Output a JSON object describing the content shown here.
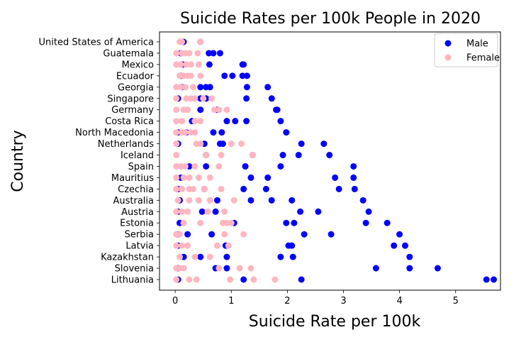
{
  "chart_data": {
    "type": "scatter",
    "title": "Suicide Rates per 100k People in 2020",
    "xlabel": "Suicide Rate per 100k",
    "ylabel": "Country",
    "xlim": [
      -0.28,
      5.8
    ],
    "xticks": [
      "0",
      "1",
      "2",
      "3",
      "4",
      "5"
    ],
    "xtick_values": [
      0,
      1,
      2,
      3,
      4,
      5
    ],
    "grid": false,
    "legend": "top-right",
    "categories": [
      "United States of America",
      "Guatemala",
      "Mexico",
      "Ecuador",
      "Georgia",
      "Singapore",
      "Germany",
      "Costa Rica",
      "North Macedonia",
      "Netherlands",
      "Iceland",
      "Spain",
      "Mauritius",
      "Czechia",
      "Australia",
      "Austria",
      "Estonia",
      "Serbia",
      "Latvia",
      "Kazakhstan",
      "Slovenia",
      "Lithuania"
    ],
    "series": [
      {
        "name": "Male",
        "color": "#0000ff",
        "points": [
          [
            "United States of America",
            0.15
          ],
          [
            "United States of America",
            0.45
          ],
          [
            "Guatemala",
            0.1
          ],
          [
            "Guatemala",
            0.6
          ],
          [
            "Guatemala",
            0.68
          ],
          [
            "Guatemala",
            0.8
          ],
          [
            "Mexico",
            0.13
          ],
          [
            "Mexico",
            0.61
          ],
          [
            "Mexico",
            1.2
          ],
          [
            "Mexico",
            1.22
          ],
          [
            "Ecuador",
            0.1
          ],
          [
            "Ecuador",
            0.88
          ],
          [
            "Ecuador",
            1.02
          ],
          [
            "Ecuador",
            1.2
          ],
          [
            "Ecuador",
            1.28
          ],
          [
            "Georgia",
            0.12
          ],
          [
            "Georgia",
            0.45
          ],
          [
            "Georgia",
            0.55
          ],
          [
            "Georgia",
            0.62
          ],
          [
            "Georgia",
            1.28
          ],
          [
            "Georgia",
            1.65
          ],
          [
            "Singapore",
            0.05
          ],
          [
            "Singapore",
            0.45
          ],
          [
            "Singapore",
            0.55
          ],
          [
            "Singapore",
            1.27
          ],
          [
            "Singapore",
            1.72
          ],
          [
            "Germany",
            0.45
          ],
          [
            "Germany",
            0.75
          ],
          [
            "Germany",
            1.8
          ],
          [
            "Germany",
            1.82
          ],
          [
            "Costa Rica",
            0.3
          ],
          [
            "Costa Rica",
            0.92
          ],
          [
            "Costa Rica",
            1.07
          ],
          [
            "Costa Rica",
            1.27
          ],
          [
            "Costa Rica",
            1.88
          ],
          [
            "North Macedonia",
            0.05
          ],
          [
            "North Macedonia",
            0.2
          ],
          [
            "North Macedonia",
            0.68
          ],
          [
            "North Macedonia",
            0.83
          ],
          [
            "North Macedonia",
            1.98
          ],
          [
            "Netherlands",
            0.05
          ],
          [
            "Netherlands",
            0.52
          ],
          [
            "Netherlands",
            0.8
          ],
          [
            "Netherlands",
            0.85
          ],
          [
            "Netherlands",
            2.25
          ],
          [
            "Netherlands",
            2.65
          ],
          [
            "Iceland",
            0.55
          ],
          [
            "Iceland",
            1.38
          ],
          [
            "Iceland",
            1.92
          ],
          [
            "Iceland",
            2.2
          ],
          [
            "Iceland",
            2.75
          ],
          [
            "Spain",
            0.25
          ],
          [
            "Spain",
            0.55
          ],
          [
            "Spain",
            1.25
          ],
          [
            "Spain",
            1.88
          ],
          [
            "Spain",
            3.18
          ],
          [
            "Mauritius",
            0.1
          ],
          [
            "Mauritius",
            1.35
          ],
          [
            "Mauritius",
            1.65
          ],
          [
            "Mauritius",
            2.85
          ],
          [
            "Mauritius",
            3.18
          ],
          [
            "Czechia",
            0.05
          ],
          [
            "Czechia",
            0.52
          ],
          [
            "Czechia",
            1.22
          ],
          [
            "Czechia",
            1.62
          ],
          [
            "Czechia",
            2.92
          ],
          [
            "Czechia",
            3.2
          ],
          [
            "Australia",
            0.08
          ],
          [
            "Australia",
            0.75
          ],
          [
            "Australia",
            1.35
          ],
          [
            "Australia",
            1.72
          ],
          [
            "Australia",
            2.08
          ],
          [
            "Australia",
            3.35
          ],
          [
            "Austria",
            0.05
          ],
          [
            "Austria",
            0.48
          ],
          [
            "Austria",
            0.72
          ],
          [
            "Austria",
            2.23
          ],
          [
            "Austria",
            2.55
          ],
          [
            "Austria",
            3.45
          ],
          [
            "Estonia",
            0.08
          ],
          [
            "Estonia",
            1.05
          ],
          [
            "Estonia",
            1.98
          ],
          [
            "Estonia",
            2.12
          ],
          [
            "Estonia",
            3.4
          ],
          [
            "Estonia",
            3.78
          ],
          [
            "Serbia",
            0.05
          ],
          [
            "Serbia",
            0.22
          ],
          [
            "Serbia",
            0.65
          ],
          [
            "Serbia",
            2.3
          ],
          [
            "Serbia",
            2.78
          ],
          [
            "Serbia",
            4.0
          ],
          [
            "Latvia",
            0.05
          ],
          [
            "Latvia",
            0.9
          ],
          [
            "Latvia",
            2.02
          ],
          [
            "Latvia",
            2.08
          ],
          [
            "Latvia",
            3.9
          ],
          [
            "Latvia",
            4.1
          ],
          [
            "Kazakhstan",
            0.15
          ],
          [
            "Kazakhstan",
            0.45
          ],
          [
            "Kazakhstan",
            0.92
          ],
          [
            "Kazakhstan",
            1.88
          ],
          [
            "Kazakhstan",
            2.1
          ],
          [
            "Kazakhstan",
            4.18
          ],
          [
            "Slovenia",
            0.05
          ],
          [
            "Slovenia",
            0.72
          ],
          [
            "Slovenia",
            0.92
          ],
          [
            "Slovenia",
            3.58
          ],
          [
            "Slovenia",
            4.18
          ],
          [
            "Slovenia",
            4.68
          ],
          [
            "Lithuania",
            0.05
          ],
          [
            "Lithuania",
            1.22
          ],
          [
            "Lithuania",
            2.25
          ],
          [
            "Lithuania",
            5.55
          ],
          [
            "Lithuania",
            5.68
          ]
        ]
      },
      {
        "name": "Female",
        "color": "#ffb6c1",
        "points": [
          [
            "United States of America",
            0.08
          ],
          [
            "United States of America",
            0.12
          ],
          [
            "United States of America",
            0.45
          ],
          [
            "Guatemala",
            0.02
          ],
          [
            "Guatemala",
            0.12
          ],
          [
            "Guatemala",
            0.18
          ],
          [
            "Guatemala",
            0.25
          ],
          [
            "Guatemala",
            0.4
          ],
          [
            "Mexico",
            0.02
          ],
          [
            "Mexico",
            0.1
          ],
          [
            "Mexico",
            0.2
          ],
          [
            "Mexico",
            0.28
          ],
          [
            "Mexico",
            0.42
          ],
          [
            "Ecuador",
            0.08
          ],
          [
            "Ecuador",
            0.15
          ],
          [
            "Ecuador",
            0.22
          ],
          [
            "Ecuador",
            0.28
          ],
          [
            "Ecuador",
            0.45
          ],
          [
            "Georgia",
            0.02
          ],
          [
            "Georgia",
            0.1
          ],
          [
            "Georgia",
            0.18
          ],
          [
            "Georgia",
            0.32
          ],
          [
            "Singapore",
            0.02
          ],
          [
            "Singapore",
            0.2
          ],
          [
            "Singapore",
            0.28
          ],
          [
            "Singapore",
            0.35
          ],
          [
            "Singapore",
            0.5
          ],
          [
            "Singapore",
            0.65
          ],
          [
            "Germany",
            0.02
          ],
          [
            "Germany",
            0.15
          ],
          [
            "Germany",
            0.22
          ],
          [
            "Germany",
            0.7
          ],
          [
            "Germany",
            0.78
          ],
          [
            "Germany",
            0.92
          ],
          [
            "Costa Rica",
            0.02
          ],
          [
            "Costa Rica",
            0.12
          ],
          [
            "Costa Rica",
            0.35
          ],
          [
            "Costa Rica",
            0.45
          ],
          [
            "North Macedonia",
            0.02
          ],
          [
            "North Macedonia",
            0.12
          ],
          [
            "North Macedonia",
            0.18
          ],
          [
            "North Macedonia",
            0.28
          ],
          [
            "North Macedonia",
            0.35
          ],
          [
            "Netherlands",
            0.02
          ],
          [
            "Netherlands",
            0.38
          ],
          [
            "Netherlands",
            0.45
          ],
          [
            "Netherlands",
            1.0
          ],
          [
            "Netherlands",
            1.18
          ],
          [
            "Iceland",
            0.02
          ],
          [
            "Iceland",
            0.55
          ],
          [
            "Iceland",
            0.82
          ],
          [
            "Iceland",
            1.38
          ],
          [
            "Spain",
            0.02
          ],
          [
            "Spain",
            0.1
          ],
          [
            "Spain",
            0.18
          ],
          [
            "Spain",
            0.35
          ],
          [
            "Spain",
            0.78
          ],
          [
            "Mauritius",
            0.02
          ],
          [
            "Mauritius",
            0.15
          ],
          [
            "Mauritius",
            0.25
          ],
          [
            "Mauritius",
            0.42
          ],
          [
            "Mauritius",
            0.62
          ],
          [
            "Czechia",
            0.02
          ],
          [
            "Czechia",
            0.12
          ],
          [
            "Czechia",
            0.25
          ],
          [
            "Czechia",
            0.32
          ],
          [
            "Czechia",
            0.52
          ],
          [
            "Czechia",
            0.82
          ],
          [
            "Australia",
            0.05
          ],
          [
            "Australia",
            0.25
          ],
          [
            "Australia",
            0.42
          ],
          [
            "Australia",
            0.62
          ],
          [
            "Australia",
            1.05
          ],
          [
            "Austria",
            0.02
          ],
          [
            "Austria",
            0.12
          ],
          [
            "Austria",
            0.22
          ],
          [
            "Austria",
            0.58
          ],
          [
            "Austria",
            0.88
          ],
          [
            "Estonia",
            0.15
          ],
          [
            "Estonia",
            0.45
          ],
          [
            "Estonia",
            0.85
          ],
          [
            "Estonia",
            0.92
          ],
          [
            "Estonia",
            1.0
          ],
          [
            "Serbia",
            0.02
          ],
          [
            "Serbia",
            0.08
          ],
          [
            "Serbia",
            0.88
          ],
          [
            "Serbia",
            1.22
          ],
          [
            "Latvia",
            0.02
          ],
          [
            "Latvia",
            0.12
          ],
          [
            "Latvia",
            0.22
          ],
          [
            "Latvia",
            0.75
          ],
          [
            "Latvia",
            0.95
          ],
          [
            "Kazakhstan",
            0.08
          ],
          [
            "Kazakhstan",
            0.35
          ],
          [
            "Kazakhstan",
            0.62
          ],
          [
            "Slovenia",
            0.02
          ],
          [
            "Slovenia",
            0.08
          ],
          [
            "Slovenia",
            0.15
          ],
          [
            "Slovenia",
            0.78
          ],
          [
            "Slovenia",
            1.15
          ],
          [
            "Slovenia",
            1.35
          ],
          [
            "Lithuania",
            0.02
          ],
          [
            "Lithuania",
            0.25
          ],
          [
            "Lithuania",
            0.38
          ],
          [
            "Lithuania",
            0.98
          ],
          [
            "Lithuania",
            1.4
          ],
          [
            "Lithuania",
            1.78
          ]
        ]
      }
    ]
  }
}
